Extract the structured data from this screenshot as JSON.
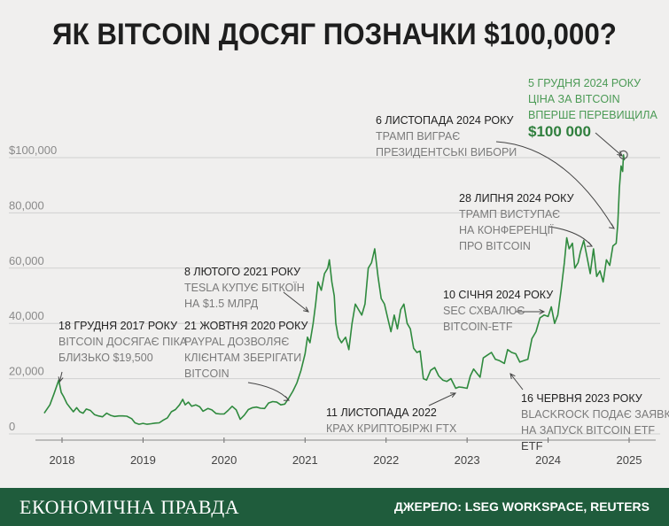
{
  "title": "ЯК BITCOIN ДОСЯГ ПОЗНАЧКИ $100,000?",
  "footer": {
    "brand": "ЕКОНОМІЧНА ПРАВДА",
    "source": "ДЖЕРЕЛО: LSEG WORKSPACE, REUTERS"
  },
  "colors": {
    "line": "#2f8a3e",
    "background": "#f0efee",
    "footer": "#1f5c3c",
    "grid": "#d0d0d0"
  },
  "chart_data": {
    "type": "line",
    "title": "ЯК BITCOIN ДОСЯГ ПОЗНАЧКИ $100,000?",
    "xlabel": "",
    "ylabel": "",
    "xlim": [
      2017.7,
      2025.4
    ],
    "ylim": [
      0,
      105000
    ],
    "grid": true,
    "y_ticks": [
      {
        "value": 0,
        "label": "0"
      },
      {
        "value": 20000,
        "label": "20,000"
      },
      {
        "value": 40000,
        "label": "40,000"
      },
      {
        "value": 60000,
        "label": "60,000"
      },
      {
        "value": 80000,
        "label": "80,000"
      },
      {
        "value": 100000,
        "label": "$100,000"
      }
    ],
    "x_ticks": [
      {
        "value": 2018,
        "label": "2018"
      },
      {
        "value": 2019,
        "label": "2019"
      },
      {
        "value": 2020,
        "label": "2020"
      },
      {
        "value": 2021,
        "label": "2021"
      },
      {
        "value": 2022,
        "label": "2022"
      },
      {
        "value": 2023,
        "label": "2023"
      },
      {
        "value": 2024,
        "label": "2024"
      },
      {
        "value": 2025,
        "label": "2025"
      }
    ],
    "series": [
      {
        "points": [
          [
            2017.78,
            7500
          ],
          [
            2017.85,
            10500
          ],
          [
            2017.9,
            14500
          ],
          [
            2017.96,
            19500
          ],
          [
            2017.99,
            15000
          ],
          [
            2018.02,
            13500
          ],
          [
            2018.06,
            11000
          ],
          [
            2018.1,
            9500
          ],
          [
            2018.14,
            8000
          ],
          [
            2018.18,
            9500
          ],
          [
            2018.22,
            8000
          ],
          [
            2018.26,
            7500
          ],
          [
            2018.3,
            9000
          ],
          [
            2018.35,
            8500
          ],
          [
            2018.4,
            7000
          ],
          [
            2018.45,
            6500
          ],
          [
            2018.5,
            6200
          ],
          [
            2018.55,
            7500
          ],
          [
            2018.6,
            6700
          ],
          [
            2018.65,
            6300
          ],
          [
            2018.7,
            6500
          ],
          [
            2018.75,
            6500
          ],
          [
            2018.8,
            6400
          ],
          [
            2018.86,
            5500
          ],
          [
            2018.9,
            4000
          ],
          [
            2018.95,
            3500
          ],
          [
            2019.0,
            3800
          ],
          [
            2019.05,
            3500
          ],
          [
            2019.1,
            3700
          ],
          [
            2019.15,
            3900
          ],
          [
            2019.2,
            4000
          ],
          [
            2019.25,
            5000
          ],
          [
            2019.3,
            5800
          ],
          [
            2019.35,
            8000
          ],
          [
            2019.4,
            8800
          ],
          [
            2019.45,
            10500
          ],
          [
            2019.49,
            12500
          ],
          [
            2019.52,
            10500
          ],
          [
            2019.56,
            11500
          ],
          [
            2019.6,
            10000
          ],
          [
            2019.65,
            10500
          ],
          [
            2019.7,
            9800
          ],
          [
            2019.74,
            8200
          ],
          [
            2019.8,
            9200
          ],
          [
            2019.85,
            8700
          ],
          [
            2019.9,
            7400
          ],
          [
            2019.95,
            7200
          ],
          [
            2020.0,
            7200
          ],
          [
            2020.05,
            8500
          ],
          [
            2020.1,
            10000
          ],
          [
            2020.15,
            8700
          ],
          [
            2020.2,
            5300
          ],
          [
            2020.25,
            6800
          ],
          [
            2020.3,
            8800
          ],
          [
            2020.35,
            9500
          ],
          [
            2020.4,
            9700
          ],
          [
            2020.45,
            9300
          ],
          [
            2020.5,
            9200
          ],
          [
            2020.55,
            11200
          ],
          [
            2020.6,
            11700
          ],
          [
            2020.65,
            11500
          ],
          [
            2020.7,
            10500
          ],
          [
            2020.75,
            10800
          ],
          [
            2020.8,
            13000
          ],
          [
            2020.85,
            15500
          ],
          [
            2020.9,
            18500
          ],
          [
            2020.95,
            23000
          ],
          [
            2021.0,
            29000
          ],
          [
            2021.03,
            35000
          ],
          [
            2021.06,
            33000
          ],
          [
            2021.1,
            40000
          ],
          [
            2021.13,
            47000
          ],
          [
            2021.16,
            55000
          ],
          [
            2021.2,
            52000
          ],
          [
            2021.24,
            58000
          ],
          [
            2021.28,
            60000
          ],
          [
            2021.3,
            63000
          ],
          [
            2021.33,
            55000
          ],
          [
            2021.36,
            50000
          ],
          [
            2021.38,
            40000
          ],
          [
            2021.41,
            35000
          ],
          [
            2021.45,
            33000
          ],
          [
            2021.5,
            35000
          ],
          [
            2021.54,
            30500
          ],
          [
            2021.58,
            40000
          ],
          [
            2021.62,
            47000
          ],
          [
            2021.66,
            45000
          ],
          [
            2021.7,
            43000
          ],
          [
            2021.74,
            47000
          ],
          [
            2021.78,
            60000
          ],
          [
            2021.82,
            62000
          ],
          [
            2021.86,
            67000
          ],
          [
            2021.9,
            57000
          ],
          [
            2021.94,
            49000
          ],
          [
            2021.98,
            47000
          ],
          [
            2022.02,
            42000
          ],
          [
            2022.06,
            37000
          ],
          [
            2022.1,
            43000
          ],
          [
            2022.14,
            38000
          ],
          [
            2022.18,
            45000
          ],
          [
            2022.22,
            47000
          ],
          [
            2022.26,
            40000
          ],
          [
            2022.3,
            38000
          ],
          [
            2022.34,
            31000
          ],
          [
            2022.38,
            29500
          ],
          [
            2022.42,
            30000
          ],
          [
            2022.46,
            20000
          ],
          [
            2022.5,
            19500
          ],
          [
            2022.55,
            23000
          ],
          [
            2022.6,
            24000
          ],
          [
            2022.65,
            21000
          ],
          [
            2022.7,
            19500
          ],
          [
            2022.75,
            19000
          ],
          [
            2022.8,
            20000
          ],
          [
            2022.86,
            16500
          ],
          [
            2022.9,
            17000
          ],
          [
            2022.95,
            16800
          ],
          [
            2023.0,
            16500
          ],
          [
            2023.04,
            21000
          ],
          [
            2023.08,
            23500
          ],
          [
            2023.12,
            22000
          ],
          [
            2023.16,
            20500
          ],
          [
            2023.2,
            27500
          ],
          [
            2023.25,
            28500
          ],
          [
            2023.3,
            29500
          ],
          [
            2023.35,
            27000
          ],
          [
            2023.4,
            26500
          ],
          [
            2023.46,
            25500
          ],
          [
            2023.5,
            30500
          ],
          [
            2023.55,
            29500
          ],
          [
            2023.6,
            29000
          ],
          [
            2023.65,
            26000
          ],
          [
            2023.7,
            26500
          ],
          [
            2023.75,
            27000
          ],
          [
            2023.8,
            34500
          ],
          [
            2023.85,
            37000
          ],
          [
            2023.9,
            42000
          ],
          [
            2023.95,
            43000
          ],
          [
            2024.0,
            42500
          ],
          [
            2024.04,
            46000
          ],
          [
            2024.08,
            40000
          ],
          [
            2024.12,
            43000
          ],
          [
            2024.16,
            52000
          ],
          [
            2024.2,
            62000
          ],
          [
            2024.23,
            71000
          ],
          [
            2024.26,
            67000
          ],
          [
            2024.3,
            69000
          ],
          [
            2024.33,
            60000
          ],
          [
            2024.37,
            62000
          ],
          [
            2024.4,
            66000
          ],
          [
            2024.44,
            70000
          ],
          [
            2024.48,
            64000
          ],
          [
            2024.52,
            58000
          ],
          [
            2024.56,
            67000
          ],
          [
            2024.6,
            57000
          ],
          [
            2024.64,
            59000
          ],
          [
            2024.68,
            55000
          ],
          [
            2024.72,
            63000
          ],
          [
            2024.76,
            61000
          ],
          [
            2024.8,
            68000
          ],
          [
            2024.84,
            69000
          ],
          [
            2024.86,
            76000
          ],
          [
            2024.88,
            89000
          ],
          [
            2024.9,
            97000
          ],
          [
            2024.92,
            95000
          ],
          [
            2024.93,
            101000
          ],
          [
            2024.94,
            99000
          ]
        ]
      }
    ],
    "annotations": [
      {
        "date": "18 ГРУДНЯ 2017 РОКУ",
        "text": [
          "BITCOIN ДОСЯГАЄ ПІКА",
          "БЛИЗЬКО $19,500"
        ],
        "point": [
          2017.96,
          19500
        ]
      },
      {
        "date": "8 ЛЮТОГО 2021 РОКУ",
        "text": [
          "TESLA КУПУЄ БІТКОЇН",
          "НА $1.5 МЛРД"
        ],
        "point": [
          2021.1,
          40000
        ]
      },
      {
        "date": "21 ЖОВТНЯ 2020 РОКУ",
        "text": [
          "PAYPAL ДОЗВОЛЯЄ",
          "КЛІЄНТАМ ЗБЕРІГАТИ",
          "BITCOIN"
        ],
        "point": [
          2020.8,
          13000
        ]
      },
      {
        "date": "11 ЛИСТОПАДА 2022",
        "text": [
          "КРАХ КРИПТОБІРЖІ FTX"
        ],
        "point": [
          2022.86,
          16500
        ]
      },
      {
        "date": "10 СІЧНЯ 2024 РОКУ",
        "text": [
          "SEC СХВАЛЮЄ",
          "BITCOIN-ETF"
        ],
        "point": [
          2024.02,
          46000
        ]
      },
      {
        "date": "16 ЧЕРВНЯ 2023 РОКУ",
        "text": [
          "BLACKROCK ПОДАЄ ЗАЯВКУ",
          "НА ЗАПУСК BITCOIN ETF"
        ],
        "point": [
          2023.46,
          25500
        ]
      },
      {
        "date": "28 ЛИПНЯ 2024 РОКУ",
        "text": [
          "ТРАМП ВИСТУПАЄ",
          "НА КОНФЕРЕНЦІЇ",
          "ПРО BITCOIN"
        ],
        "point": [
          2024.56,
          67000
        ]
      },
      {
        "date": "6 ЛИСТОПАДА 2024 РОКУ",
        "text": [
          "ТРАМП ВИГРАЄ",
          "ПРЕЗИДЕНТСЬКІ ВИБОРИ"
        ],
        "point": [
          2024.86,
          76000
        ]
      },
      {
        "date": "5 ГРУДНЯ 2024 РОКУ",
        "text": [
          "ЦІНА ЗА BITCOIN",
          "ВПЕРШЕ ПЕРЕВИЩИЛА"
        ],
        "highlight": "$100 000",
        "point": [
          2024.93,
          101000
        ]
      }
    ],
    "extra_labels": [
      {
        "text": "ETF",
        "x": 2023.8
      }
    ]
  }
}
